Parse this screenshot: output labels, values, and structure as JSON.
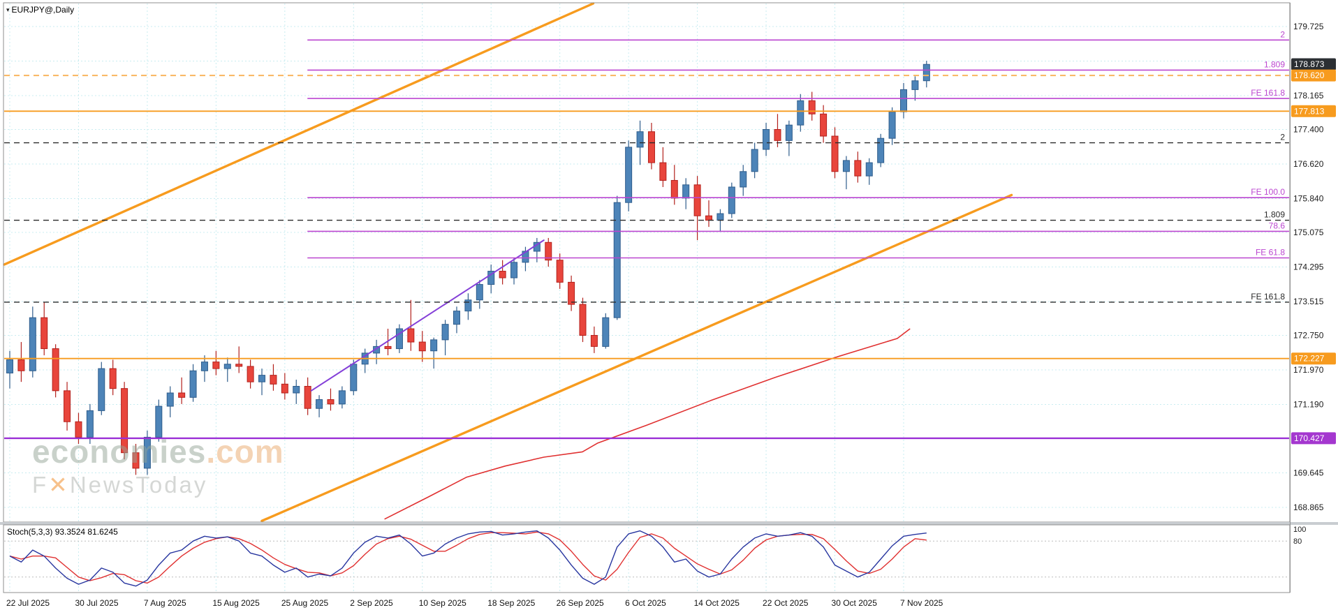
{
  "header": {
    "symbol": "EURJPY@,Daily",
    "arrow_icon": "▾"
  },
  "watermark": {
    "brand": "economies",
    "tld": ".com",
    "line2_pre": "F",
    "line2_x": "✕",
    "line2_post": "NewsToday"
  },
  "indicator": {
    "label": "Stoch(5,3,3) 93.3524 81.6245",
    "scale_ticks": [
      "100",
      "80"
    ]
  },
  "price_axis": {
    "ticks": [
      "179.725",
      "178.165",
      "177.400",
      "176.620",
      "175.840",
      "175.075",
      "174.295",
      "173.515",
      "172.750",
      "171.970",
      "171.190",
      "169.645",
      "168.865"
    ]
  },
  "chart_data": {
    "type": "candlestick",
    "symbol": "EURJPY",
    "timeframe": "Daily",
    "current_price": 178.873,
    "x_labels": [
      "22 Jul 2025",
      "30 Jul 2025",
      "7 Aug 2025",
      "15 Aug 2025",
      "25 Aug 2025",
      "2 Sep 2025",
      "10 Sep 2025",
      "18 Sep 2025",
      "26 Sep 2025",
      "6 Oct 2025",
      "14 Oct 2025",
      "22 Oct 2025",
      "30 Oct 2025",
      "7 Nov 2025"
    ],
    "x_label_bar_indices": [
      0,
      6,
      12,
      18,
      24,
      30,
      36,
      42,
      48,
      54,
      60,
      66,
      72,
      78
    ],
    "colors": {
      "bull": "#4d84b8",
      "bull_stroke": "#2f5d8c",
      "bear": "#e8453c",
      "bear_stroke": "#b3211c",
      "grid": "#c8ecf0"
    },
    "ohlc": [
      [
        171.9,
        172.4,
        171.55,
        172.2
      ],
      [
        172.2,
        172.6,
        171.7,
        171.95
      ],
      [
        171.95,
        173.4,
        171.8,
        173.15
      ],
      [
        173.15,
        173.5,
        172.3,
        172.45
      ],
      [
        172.45,
        172.55,
        171.35,
        171.5
      ],
      [
        171.5,
        171.7,
        170.6,
        170.8
      ],
      [
        170.8,
        171.0,
        170.3,
        170.45
      ],
      [
        170.45,
        171.2,
        170.3,
        171.05
      ],
      [
        171.05,
        172.15,
        170.95,
        172.0
      ],
      [
        172.0,
        172.2,
        171.4,
        171.55
      ],
      [
        171.55,
        171.7,
        169.95,
        170.1
      ],
      [
        170.1,
        170.3,
        169.6,
        169.75
      ],
      [
        169.75,
        170.6,
        169.6,
        170.45
      ],
      [
        170.45,
        171.3,
        170.35,
        171.15
      ],
      [
        171.15,
        171.6,
        170.9,
        171.45
      ],
      [
        171.45,
        171.8,
        171.2,
        171.35
      ],
      [
        171.35,
        172.1,
        171.25,
        171.95
      ],
      [
        171.95,
        172.3,
        171.7,
        172.15
      ],
      [
        172.15,
        172.4,
        171.85,
        172.0
      ],
      [
        172.0,
        172.25,
        171.7,
        172.1
      ],
      [
        172.1,
        172.5,
        171.9,
        172.05
      ],
      [
        172.05,
        172.2,
        171.55,
        171.7
      ],
      [
        171.7,
        172.0,
        171.4,
        171.85
      ],
      [
        171.85,
        172.1,
        171.5,
        171.65
      ],
      [
        171.65,
        171.9,
        171.3,
        171.45
      ],
      [
        171.45,
        171.75,
        171.2,
        171.6
      ],
      [
        171.6,
        171.8,
        170.95,
        171.1
      ],
      [
        171.1,
        171.4,
        170.9,
        171.3
      ],
      [
        171.3,
        171.55,
        171.05,
        171.2
      ],
      [
        171.2,
        171.6,
        171.1,
        171.5
      ],
      [
        171.5,
        172.2,
        171.4,
        172.1
      ],
      [
        172.1,
        172.45,
        171.9,
        172.35
      ],
      [
        172.35,
        172.65,
        172.1,
        172.5
      ],
      [
        172.5,
        172.9,
        172.3,
        172.45
      ],
      [
        172.45,
        173.0,
        172.35,
        172.9
      ],
      [
        172.9,
        173.55,
        172.4,
        172.6
      ],
      [
        172.6,
        172.85,
        172.15,
        172.4
      ],
      [
        172.4,
        172.7,
        172.0,
        172.65
      ],
      [
        172.65,
        173.1,
        172.3,
        173.0
      ],
      [
        173.0,
        173.4,
        172.8,
        173.3
      ],
      [
        173.3,
        173.7,
        173.1,
        173.55
      ],
      [
        173.55,
        174.0,
        173.35,
        173.9
      ],
      [
        173.9,
        174.35,
        173.7,
        174.2
      ],
      [
        174.2,
        174.45,
        173.9,
        174.05
      ],
      [
        174.05,
        174.5,
        173.9,
        174.4
      ],
      [
        174.4,
        174.75,
        174.2,
        174.65
      ],
      [
        174.65,
        174.95,
        174.4,
        174.85
      ],
      [
        174.85,
        174.95,
        174.3,
        174.45
      ],
      [
        174.45,
        174.6,
        173.8,
        173.95
      ],
      [
        173.95,
        174.1,
        173.3,
        173.45
      ],
      [
        173.45,
        173.6,
        172.6,
        172.75
      ],
      [
        172.75,
        172.95,
        172.35,
        172.5
      ],
      [
        172.5,
        173.25,
        172.45,
        173.15
      ],
      [
        173.15,
        175.9,
        173.1,
        175.75
      ],
      [
        175.75,
        177.15,
        175.55,
        177.0
      ],
      [
        177.0,
        177.6,
        176.6,
        177.35
      ],
      [
        177.35,
        177.55,
        176.5,
        176.65
      ],
      [
        176.65,
        177.0,
        176.1,
        176.25
      ],
      [
        176.25,
        176.6,
        175.7,
        175.85
      ],
      [
        175.85,
        176.3,
        175.6,
        176.15
      ],
      [
        176.15,
        176.35,
        174.9,
        175.45
      ],
      [
        175.45,
        175.8,
        175.2,
        175.35
      ],
      [
        175.35,
        175.6,
        175.1,
        175.5
      ],
      [
        175.5,
        176.2,
        175.4,
        176.1
      ],
      [
        176.1,
        176.6,
        175.9,
        176.45
      ],
      [
        176.45,
        177.1,
        176.3,
        176.95
      ],
      [
        176.95,
        177.55,
        176.8,
        177.4
      ],
      [
        177.4,
        177.75,
        177.0,
        177.15
      ],
      [
        177.15,
        177.6,
        176.8,
        177.5
      ],
      [
        177.5,
        178.2,
        177.35,
        178.05
      ],
      [
        178.05,
        178.25,
        177.6,
        177.75
      ],
      [
        177.75,
        177.95,
        177.1,
        177.25
      ],
      [
        177.25,
        177.45,
        176.3,
        176.45
      ],
      [
        176.45,
        176.8,
        176.05,
        176.7
      ],
      [
        176.7,
        176.9,
        176.2,
        176.35
      ],
      [
        176.35,
        176.75,
        176.15,
        176.65
      ],
      [
        176.65,
        177.3,
        176.55,
        177.2
      ],
      [
        177.2,
        177.9,
        177.05,
        177.8
      ],
      [
        177.8,
        178.45,
        177.65,
        178.3
      ],
      [
        178.3,
        178.6,
        178.05,
        178.5
      ],
      [
        178.5,
        178.95,
        178.35,
        178.87
      ]
    ],
    "axis_tags": [
      {
        "text": "178.873",
        "bg": "#2b2f33",
        "name": "current-price-tag"
      },
      {
        "text": "178.620",
        "bg": "#f79b1e",
        "name": "orange-level-tag"
      },
      {
        "text": "177.813",
        "bg": "#f79b1e",
        "name": "orange-level-tag"
      },
      {
        "text": "172.227",
        "bg": "#f79b1e",
        "name": "orange-level-tag"
      },
      {
        "text": "170.427",
        "bg": "#a437cf",
        "name": "purple-level-tag"
      }
    ],
    "levels": [
      {
        "price": 179.42,
        "label": "2",
        "color": "#bb46d0",
        "style": "solid",
        "from": 0.236,
        "width": 1.6,
        "name": "fib-ext-2"
      },
      {
        "price": 178.74,
        "label": "1.809",
        "color": "#bb46d0",
        "style": "solid",
        "from": 0.236,
        "width": 1.6,
        "name": "fib-ext-1809"
      },
      {
        "price": 178.62,
        "label": "",
        "color": "#f9b55e",
        "style": "dashed",
        "from": 0,
        "width": 2,
        "name": "orange-dashed-level"
      },
      {
        "price": 178.1,
        "label": "FE 161.8",
        "color": "#bb46d0",
        "style": "solid",
        "from": 0.236,
        "width": 1.6,
        "name": "fib-ext-1618"
      },
      {
        "price": 177.813,
        "label": "",
        "color": "#f79b1e",
        "style": "solid",
        "from": 0,
        "width": 1.8,
        "name": "orange-level"
      },
      {
        "price": 177.1,
        "label": "2",
        "color": "#2a2a2a",
        "style": "dashed",
        "from": 0,
        "width": 1.4,
        "name": "black-dashed-2"
      },
      {
        "price": 175.86,
        "label": "FE 100.0",
        "color": "#bb46d0",
        "style": "solid",
        "from": 0.236,
        "width": 1.6,
        "name": "fib-ext-100"
      },
      {
        "price": 175.35,
        "label": "1.809",
        "color": "#2a2a2a",
        "style": "dashed",
        "from": 0,
        "width": 1.4,
        "name": "black-dashed-1809"
      },
      {
        "price": 175.1,
        "label": "78.6",
        "color": "#bb46d0",
        "style": "solid",
        "from": 0.236,
        "width": 1.6,
        "name": "fib-786"
      },
      {
        "price": 174.5,
        "label": "FE 61.8",
        "color": "#bb46d0",
        "style": "solid",
        "from": 0.236,
        "width": 1.6,
        "name": "fib-ext-618"
      },
      {
        "price": 173.5,
        "label": "FE 161.8",
        "color": "#2a2a2a",
        "style": "dashed",
        "from": 0,
        "width": 1.4,
        "name": "black-dashed-fe1618"
      },
      {
        "price": 172.227,
        "label": "",
        "color": "#f79b1e",
        "style": "solid",
        "from": 0,
        "width": 1.8,
        "name": "orange-level"
      },
      {
        "price": 170.427,
        "label": "",
        "color": "#9b30d6",
        "style": "solid",
        "from": 0,
        "width": 2.4,
        "name": "purple-support-level"
      }
    ],
    "trendlines": [
      {
        "name": "orange-channel-upper",
        "x1": 0.0,
        "p1": 174.35,
        "x2": 0.4584,
        "p2": 180.245,
        "color": "#f79b1e",
        "width": 3.4
      },
      {
        "name": "orange-channel-lower",
        "x1": 0.2005,
        "p1": 168.56,
        "x2": 0.784,
        "p2": 175.92,
        "color": "#f79b1e",
        "width": 3.4
      },
      {
        "name": "purple-trendline",
        "x1": 0.239,
        "p1": 171.5,
        "x2": 0.42,
        "p2": 174.9,
        "color": "#8440d8",
        "width": 2
      }
    ],
    "ma_line": {
      "color": "#e03030",
      "width": 1.6,
      "points": [
        [
          0.296,
          168.6
        ],
        [
          0.33,
          169.1
        ],
        [
          0.36,
          169.55
        ],
        [
          0.39,
          169.8
        ],
        [
          0.42,
          170.0
        ],
        [
          0.45,
          170.12
        ],
        [
          0.462,
          170.32
        ],
        [
          0.5,
          170.72
        ],
        [
          0.55,
          171.28
        ],
        [
          0.6,
          171.8
        ],
        [
          0.65,
          172.28
        ],
        [
          0.695,
          172.68
        ],
        [
          0.705,
          172.9
        ]
      ]
    },
    "stoch": {
      "k_color": "#27359f",
      "d_color": "#e03030",
      "upper_level": 80,
      "lower_level": 20,
      "k": [
        55,
        45,
        65,
        55,
        35,
        18,
        8,
        15,
        35,
        28,
        10,
        5,
        15,
        40,
        60,
        65,
        80,
        88,
        85,
        87,
        80,
        60,
        55,
        40,
        28,
        35,
        20,
        25,
        22,
        35,
        60,
        78,
        88,
        85,
        90,
        75,
        55,
        60,
        75,
        85,
        92,
        95,
        96,
        90,
        92,
        95,
        97,
        85,
        65,
        40,
        18,
        8,
        20,
        70,
        92,
        97,
        88,
        70,
        45,
        50,
        30,
        20,
        25,
        50,
        70,
        85,
        92,
        88,
        90,
        94,
        88,
        70,
        40,
        30,
        20,
        28,
        50,
        72,
        88,
        91,
        93.35
      ],
      "d": [
        55,
        50,
        55,
        55,
        52,
        36,
        20,
        14,
        19,
        26,
        24,
        14,
        10,
        20,
        38,
        55,
        68,
        78,
        84,
        87,
        84,
        76,
        65,
        52,
        41,
        34,
        28,
        27,
        22,
        27,
        39,
        58,
        75,
        84,
        88,
        83,
        73,
        63,
        63,
        73,
        84,
        91,
        94,
        94,
        93,
        92,
        95,
        92,
        82,
        63,
        41,
        22,
        15,
        33,
        61,
        86,
        92,
        85,
        68,
        55,
        42,
        33,
        25,
        32,
        48,
        68,
        82,
        88,
        90,
        91,
        91,
        84,
        66,
        47,
        30,
        26,
        33,
        50,
        70,
        84,
        81.62
      ]
    }
  }
}
